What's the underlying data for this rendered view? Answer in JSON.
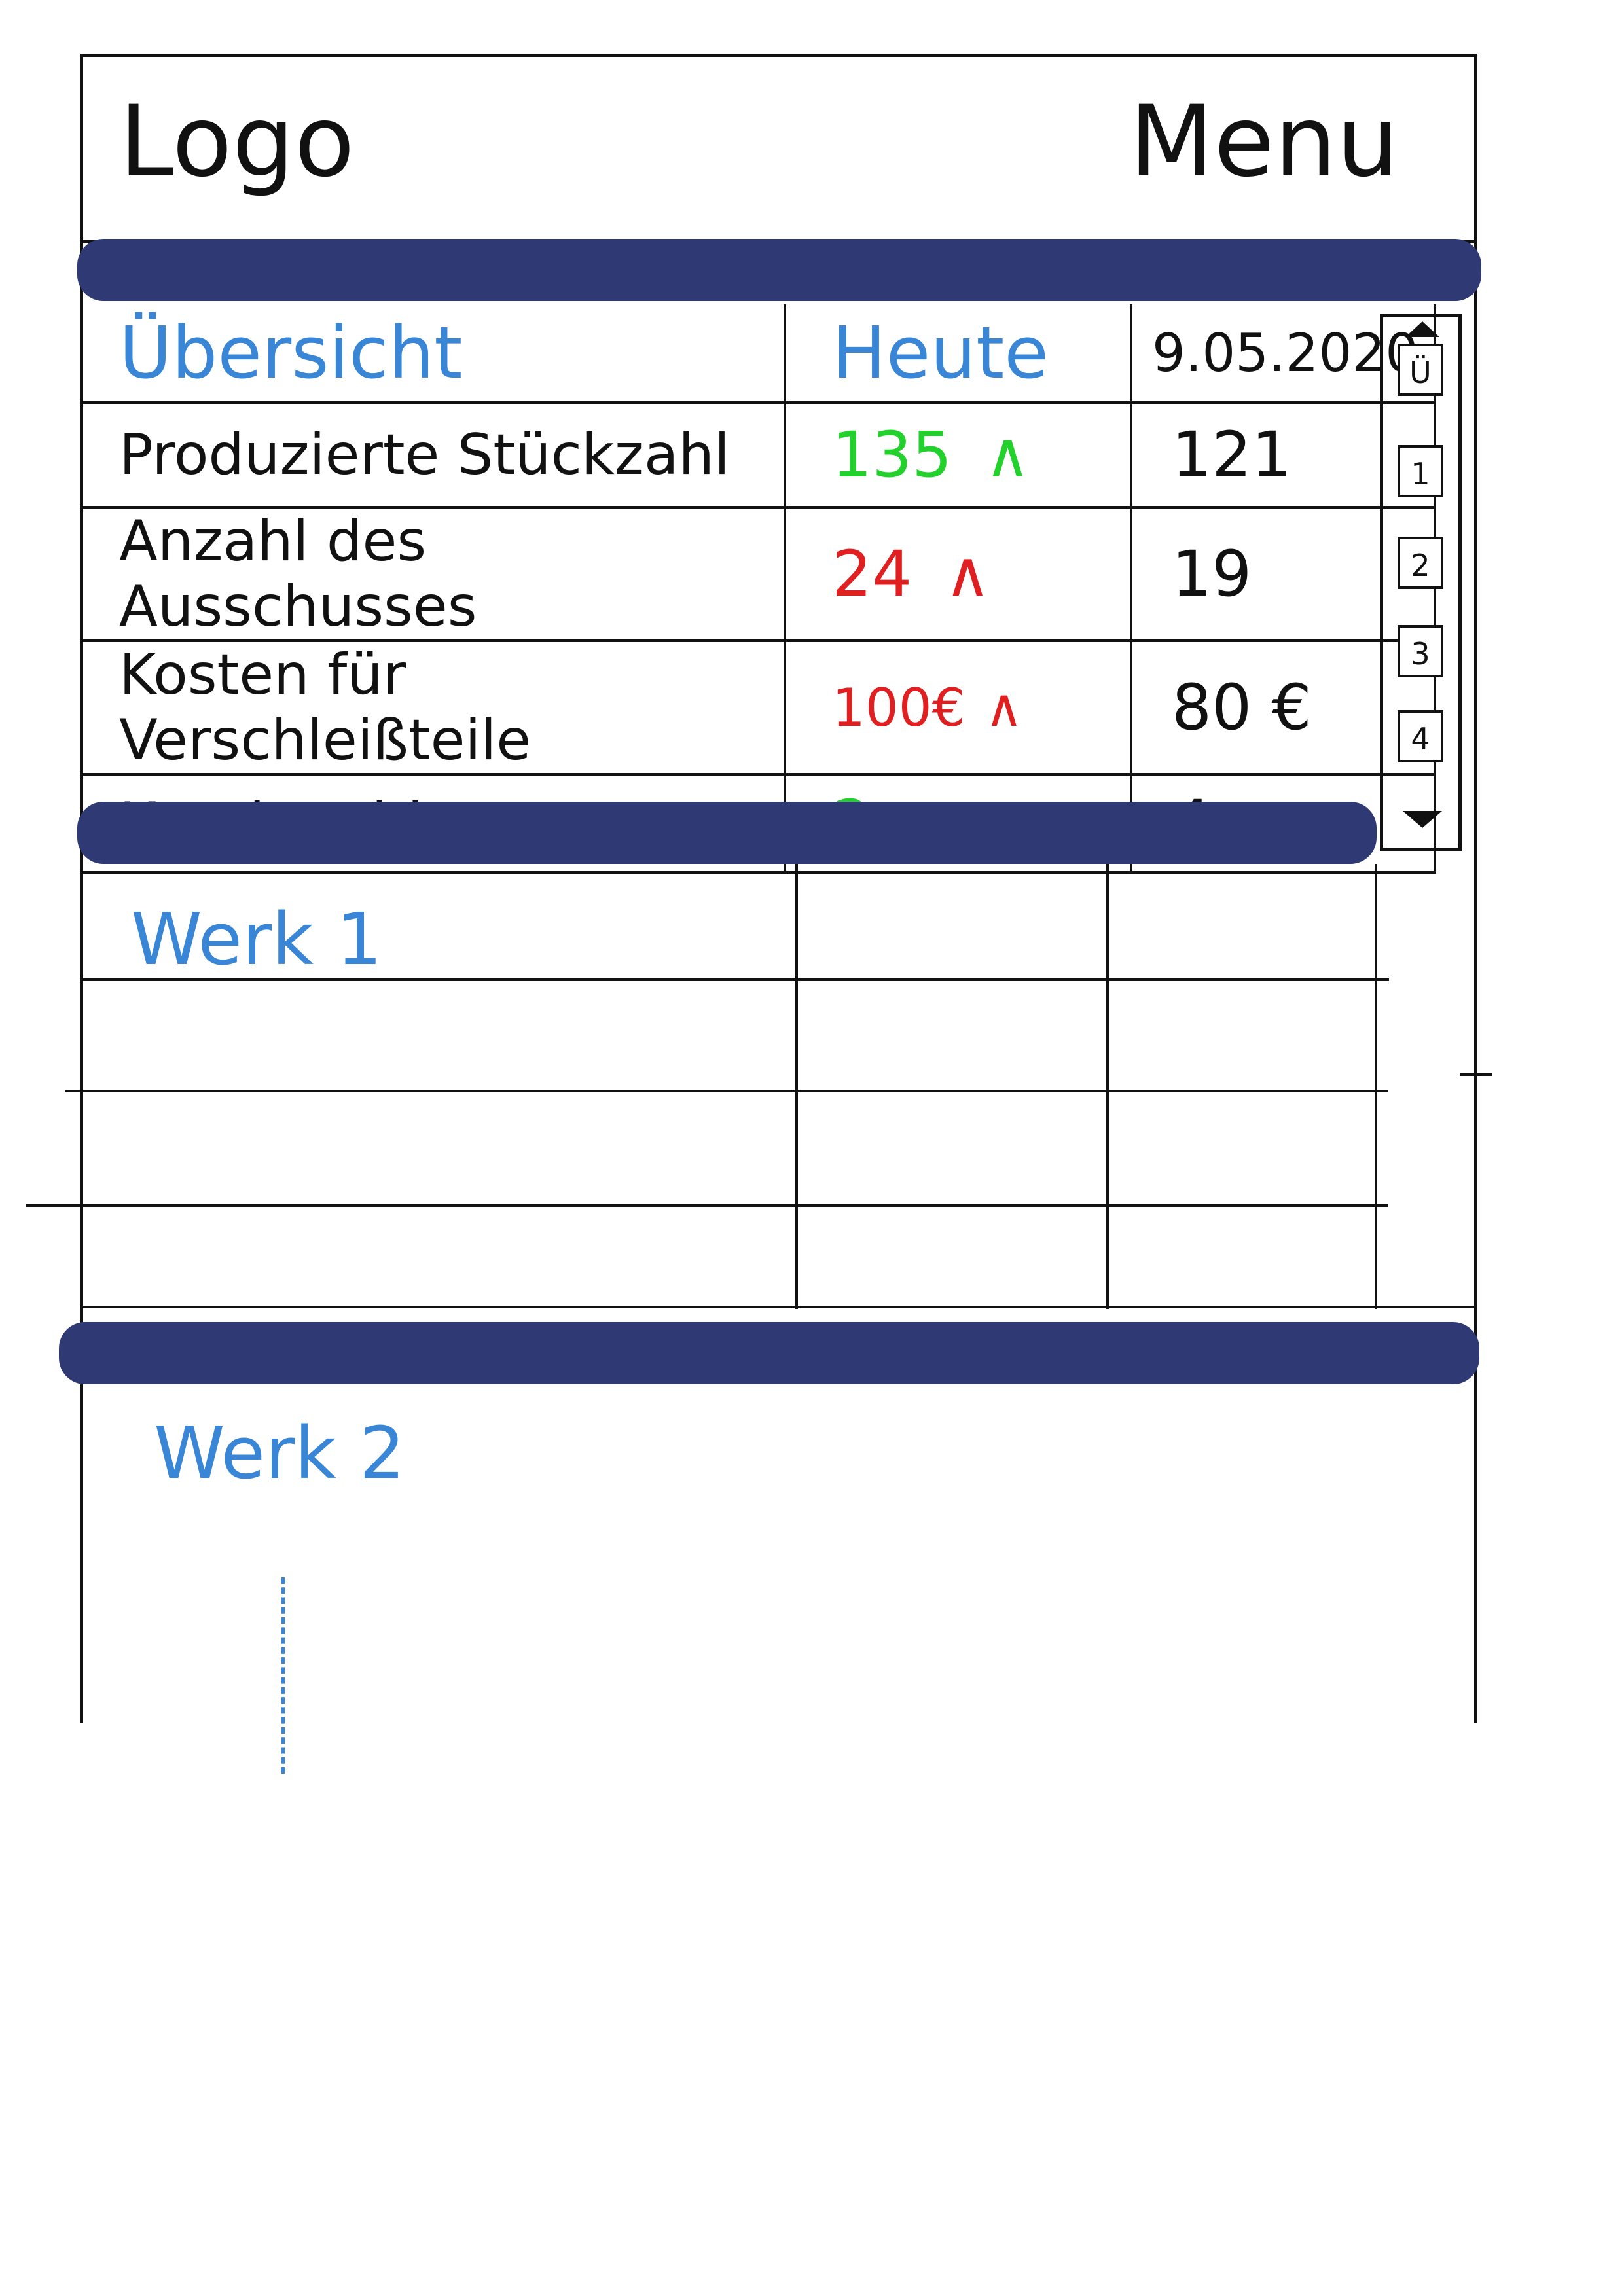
{
  "header": {
    "logo": "Logo",
    "menu": "Menu"
  },
  "overview": {
    "title": "Übersicht",
    "col_today": "Heute",
    "col_date": "9.05.2020",
    "rows": [
      {
        "label": "Produzierte Stückzahl",
        "today": "135",
        "trend": "up",
        "trend_color": "#22d12b",
        "prev": "121"
      },
      {
        "label": "Anzahl des Ausschusses",
        "today": "24",
        "trend": "up",
        "trend_color": "#e02020",
        "prev": "19"
      },
      {
        "label": "Kosten für Verschleißteile",
        "today": "100€",
        "trend": "up",
        "trend_color": "#e02020",
        "prev": "80 €"
      },
      {
        "label": "Krankmeldungen",
        "today": "2",
        "trend": "down",
        "trend_color": "#22d12b",
        "prev": "4"
      }
    ]
  },
  "pager": {
    "current": "Ü",
    "pages": [
      "1",
      "2",
      "3",
      "4"
    ]
  },
  "werk1": {
    "title": "Werk 1"
  },
  "werk2": {
    "title": "Werk 2"
  },
  "colors": {
    "bar": "#2f3a75",
    "accent": "#3a86d6",
    "good": "#22d12b",
    "bad": "#e02020"
  }
}
